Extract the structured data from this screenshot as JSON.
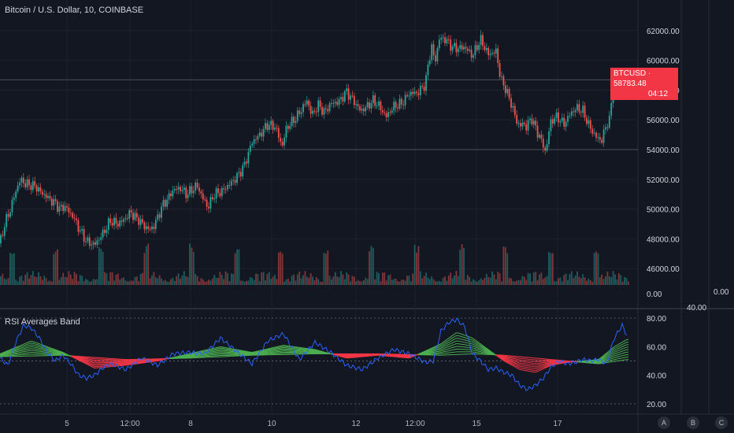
{
  "header": {
    "title": "Bitcoin / U.S. Dollar, 10, COINBASE"
  },
  "indicator": {
    "title": "RSI Averages Band"
  },
  "price_tag": {
    "symbol": "BTCUSD",
    "price": "58783.48",
    "countdown": "04:12"
  },
  "axis_extra": {
    "volume_zero": "0.00",
    "volume_zero_right": "0.00",
    "indicator_mid": "40.00"
  },
  "buttons": {
    "a": "A",
    "b": "B",
    "c": "C"
  },
  "colors": {
    "bg": "#131722",
    "up": "#26a69a",
    "down": "#ef5350",
    "rsi": "#2962ff",
    "band_up": "#4caf50",
    "band_down": "#f23645"
  },
  "chart_data": [
    {
      "type": "candlestick",
      "title": "Bitcoin / U.S. Dollar, 10, COINBASE",
      "y_ticks": [
        "62000.00",
        "60000.00",
        "58000.00",
        "56000.00",
        "54000.00",
        "52000.00",
        "50000.00",
        "48000.00",
        "46000.00"
      ],
      "ylim": [
        45000,
        63000
      ],
      "x_ticks": [
        "5",
        "12:00",
        "8",
        "10",
        "12",
        "12:00",
        "15",
        "17"
      ],
      "series": [
        {
          "name": "BTCUSD close",
          "x": [
            0,
            6,
            12,
            20,
            26,
            32,
            40,
            46,
            52,
            58,
            64,
            70,
            76,
            82,
            88,
            94,
            100,
            110,
            120,
            130,
            140,
            150,
            160,
            166,
            172,
            176,
            182,
            190,
            196,
            202,
            208,
            212,
            220,
            230,
            236,
            242,
            250,
            258,
            264,
            272,
            282,
            290,
            300,
            310,
            320,
            330,
            340,
            350,
            358,
            364,
            370,
            378,
            384,
            390,
            396,
            404,
            412,
            420,
            430,
            440,
            450,
            458,
            466,
            474,
            482,
            490,
            500,
            510,
            520,
            530,
            540,
            544,
            548,
            552,
            558,
            566,
            574,
            582,
            590,
            600,
            610,
            620,
            630,
            636,
            642,
            648,
            652,
            656,
            660,
            668,
            676,
            682,
            686,
            692,
            700,
            708,
            716,
            724,
            732,
            740,
            748,
            756,
            764,
            770,
            774,
            778,
            786,
            796
          ],
          "values": [
            47700,
            49000,
            49800,
            51200,
            52000,
            51700,
            51600,
            51500,
            51100,
            50900,
            50600,
            50400,
            50000,
            50200,
            49800,
            49400,
            48700,
            47800,
            47600,
            48300,
            49200,
            49000,
            49400,
            49800,
            49400,
            49300,
            48900,
            48600,
            48900,
            49700,
            50400,
            50600,
            51300,
            51400,
            51000,
            51200,
            51600,
            50700,
            50100,
            51000,
            51200,
            51600,
            52100,
            52900,
            54500,
            55000,
            55700,
            55500,
            54200,
            55500,
            55800,
            56300,
            56800,
            57300,
            56300,
            57000,
            56500,
            57100,
            57200,
            57900,
            57200,
            56600,
            56900,
            57300,
            56900,
            56200,
            56900,
            57100,
            57800,
            57800,
            58400,
            59800,
            61000,
            59800,
            61500,
            61400,
            60900,
            60800,
            60900,
            60300,
            61400,
            60400,
            60600,
            58700,
            58100,
            57200,
            56700,
            55800,
            55700,
            55600,
            56100,
            55100,
            54900,
            53800,
            56000,
            56200,
            55700,
            56400,
            56800,
            56600,
            55600,
            54900,
            54600,
            55700,
            56000,
            57900,
            58800,
            58783
          ]
        }
      ]
    },
    {
      "type": "line",
      "title": "RSI Averages Band",
      "y_ticks": [
        "80.00",
        "60.00",
        "40.00",
        "20.00"
      ],
      "ylim": [
        15,
        85
      ],
      "series": [
        {
          "name": "RSI",
          "x": [
            0,
            10,
            20,
            30,
            40,
            50,
            60,
            70,
            80,
            90,
            100,
            110,
            120,
            130,
            140,
            160,
            180,
            200,
            220,
            240,
            260,
            280,
            300,
            320,
            340,
            360,
            380,
            400,
            420,
            440,
            460,
            480,
            500,
            520,
            540,
            550,
            560,
            570,
            580,
            590,
            600,
            610,
            620,
            630,
            640,
            650,
            660,
            670,
            680,
            690,
            700,
            710,
            720,
            730,
            740,
            750,
            760,
            770,
            780,
            790,
            796
          ],
          "values": [
            52,
            47,
            63,
            75,
            73,
            66,
            56,
            50,
            54,
            48,
            40,
            38,
            40,
            45,
            48,
            44,
            52,
            47,
            55,
            56,
            55,
            66,
            57,
            48,
            64,
            69,
            51,
            63,
            56,
            47,
            44,
            52,
            58,
            55,
            49,
            50,
            71,
            77,
            79,
            74,
            55,
            50,
            44,
            45,
            42,
            40,
            33,
            30,
            33,
            38,
            46,
            50,
            48,
            49,
            51,
            50,
            51,
            48,
            66,
            75,
            68
          ]
        },
        {
          "name": "Band fast",
          "x": [
            0,
            40,
            80,
            120,
            160,
            200,
            240,
            280,
            320,
            360,
            400,
            440,
            480,
            520,
            560,
            580,
            600,
            620,
            640,
            660,
            680,
            700,
            720,
            740,
            760,
            780,
            796
          ],
          "values": [
            55,
            64,
            56,
            45,
            47,
            50,
            55,
            60,
            56,
            61,
            58,
            52,
            54,
            52,
            62,
            70,
            66,
            58,
            50,
            44,
            42,
            47,
            49,
            50,
            51,
            60,
            65
          ]
        },
        {
          "name": "Band slow",
          "x": [
            0,
            80,
            160,
            240,
            320,
            400,
            480,
            560,
            600,
            640,
            680,
            720,
            760,
            796
          ],
          "values": [
            53,
            54,
            51,
            52,
            54,
            55,
            55,
            54,
            55,
            54,
            52,
            50,
            48,
            51
          ]
        }
      ]
    }
  ]
}
